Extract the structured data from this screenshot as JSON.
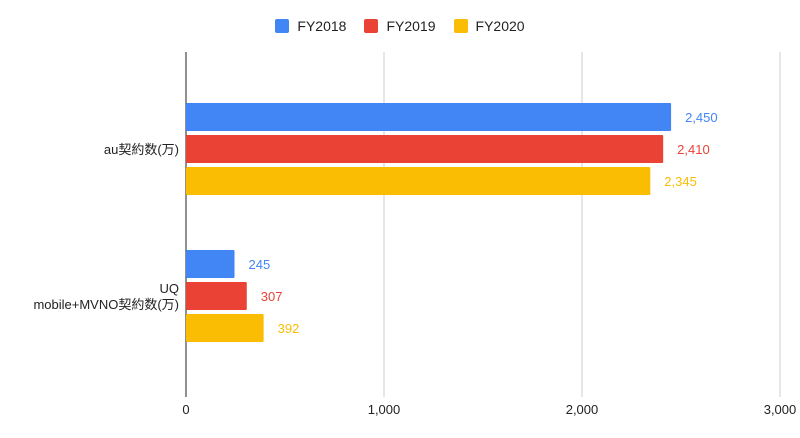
{
  "chart_data": {
    "type": "bar",
    "orientation": "horizontal",
    "categories": [
      "au契約数(万)",
      "UQ mobile+MVNO契約数(万)"
    ],
    "category_lines": [
      [
        "au契約数(万)"
      ],
      [
        "UQ",
        "mobile+MVNO契約数(万)"
      ]
    ],
    "series": [
      {
        "name": "FY2018",
        "values": [
          2450,
          245
        ],
        "labels": [
          "2,450",
          "245"
        ],
        "color": "#4285f4"
      },
      {
        "name": "FY2019",
        "values": [
          2410,
          307
        ],
        "labels": [
          "2,410",
          "307"
        ],
        "color": "#ea4335"
      },
      {
        "name": "FY2020",
        "values": [
          2345,
          392
        ],
        "labels": [
          "2,345",
          "392"
        ],
        "color": "#fbbc04"
      }
    ],
    "xlim": [
      0,
      3000
    ],
    "xticks": [
      0,
      1000,
      2000,
      3000
    ],
    "xtick_labels": [
      "0",
      "1,000",
      "2,000",
      "3,000"
    ],
    "grid": true,
    "legend": "top",
    "title": "",
    "xlabel": "",
    "ylabel": ""
  }
}
